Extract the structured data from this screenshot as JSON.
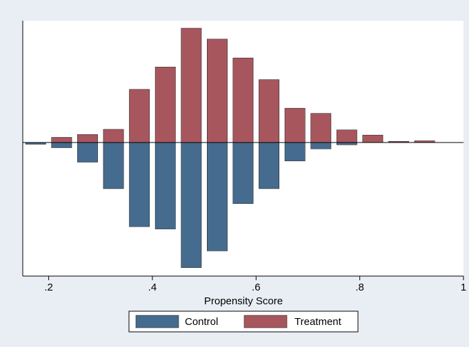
{
  "chart_data": {
    "type": "bar",
    "subtype": "mirrored-histogram",
    "xlabel": "Propensity Score",
    "ylabel": "",
    "xlim": [
      0.15,
      1.0
    ],
    "xticks": [
      0.2,
      0.4,
      0.6,
      0.8,
      1.0
    ],
    "xtick_labels": [
      ".2",
      ".4",
      ".6",
      ".8",
      "1"
    ],
    "bin_width": 0.05,
    "bin_centers": [
      0.175,
      0.225,
      0.275,
      0.325,
      0.375,
      0.425,
      0.475,
      0.525,
      0.575,
      0.625,
      0.675,
      0.725,
      0.775,
      0.825,
      0.875,
      0.925
    ],
    "ylim": [
      -2.15,
      2.0
    ],
    "grid": false,
    "zero_line": true,
    "legend_position": "bottom",
    "series": [
      {
        "name": "Treatment",
        "direction": "up",
        "color": "#a8565d",
        "values": [
          0.0,
          0.09,
          0.14,
          0.23,
          0.93,
          1.32,
          2.0,
          1.81,
          1.48,
          1.1,
          0.6,
          0.51,
          0.22,
          0.13,
          0.02,
          0.03
        ]
      },
      {
        "name": "Control",
        "direction": "down",
        "color": "#456b8f",
        "values": [
          0.03,
          0.09,
          0.34,
          0.8,
          1.46,
          1.5,
          2.17,
          1.88,
          1.06,
          0.8,
          0.32,
          0.11,
          0.04,
          0.0,
          0.0,
          0.0
        ]
      }
    ]
  }
}
